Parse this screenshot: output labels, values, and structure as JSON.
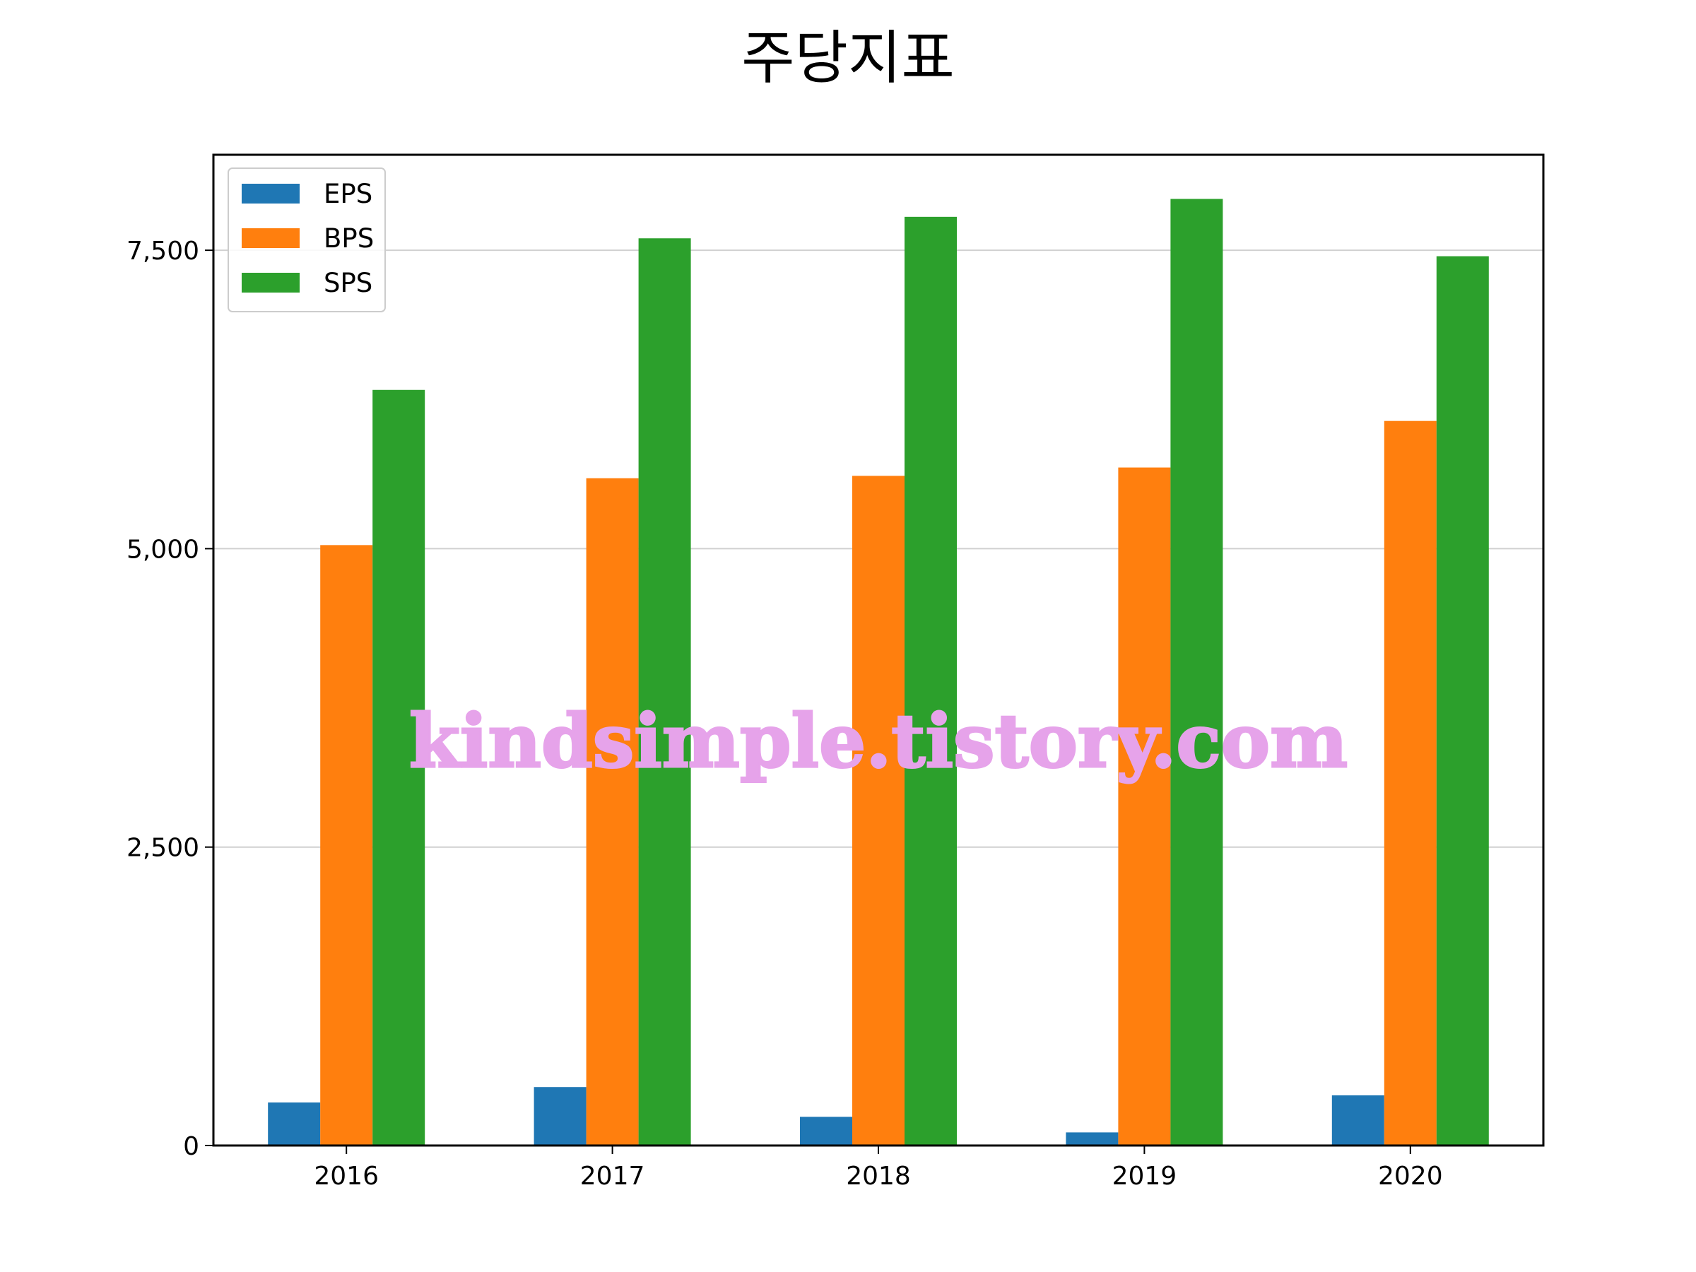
{
  "chart_data": {
    "type": "bar",
    "title": "주당지표",
    "xlabel": "",
    "ylabel": "",
    "categories": [
      "2016",
      "2017",
      "2018",
      "2019",
      "2020"
    ],
    "series": [
      {
        "name": "EPS",
        "color": "#1f77b4",
        "values": [
          360,
          490,
          240,
          110,
          420
        ]
      },
      {
        "name": "BPS",
        "color": "#ff7f0e",
        "values": [
          5030,
          5590,
          5610,
          5680,
          6070
        ]
      },
      {
        "name": "SPS",
        "color": "#2ca02c",
        "values": [
          6330,
          7600,
          7780,
          7930,
          7450
        ]
      }
    ],
    "ylim": [
      0,
      8300
    ],
    "yticks": [
      0,
      2500,
      5000,
      7500
    ],
    "ytick_labels": [
      "0",
      "2,500",
      "5,000",
      "7,500"
    ],
    "grid": "horizontal",
    "legend": "top-left",
    "watermark": "kindsimple.tistory.com"
  }
}
